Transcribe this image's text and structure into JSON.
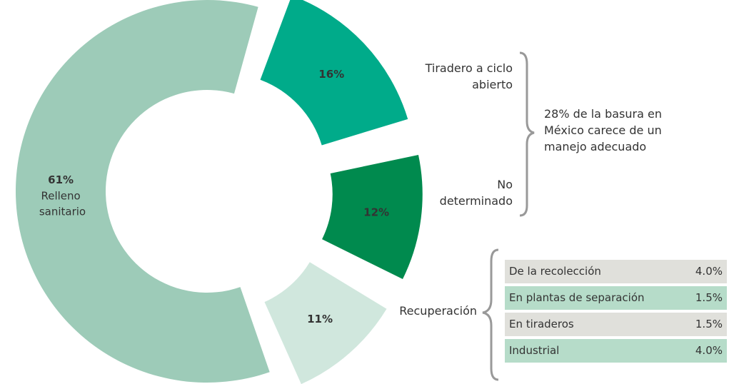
{
  "chart_data": {
    "type": "donut",
    "categories": [
      "Relleno sanitario",
      "Tiradero a ciclo abierto",
      "No determinado",
      "Recuperación"
    ],
    "values": [
      61,
      16,
      12,
      11
    ],
    "value_labels": [
      "61%",
      "16%",
      "12%",
      "11%"
    ],
    "colors": [
      "#9dcbb8",
      "#00ab8a",
      "#008a4e",
      "#d0e7dd"
    ],
    "annotation": "28% de la basura en México carece de un manejo adecuado",
    "table": {
      "rows": [
        [
          "De la recolección",
          "4.0%"
        ],
        [
          "En plantas de separación",
          "1.5%"
        ],
        [
          "En tiraderos",
          "1.5%"
        ],
        [
          "Industrial",
          "4.0%"
        ]
      ]
    }
  }
}
